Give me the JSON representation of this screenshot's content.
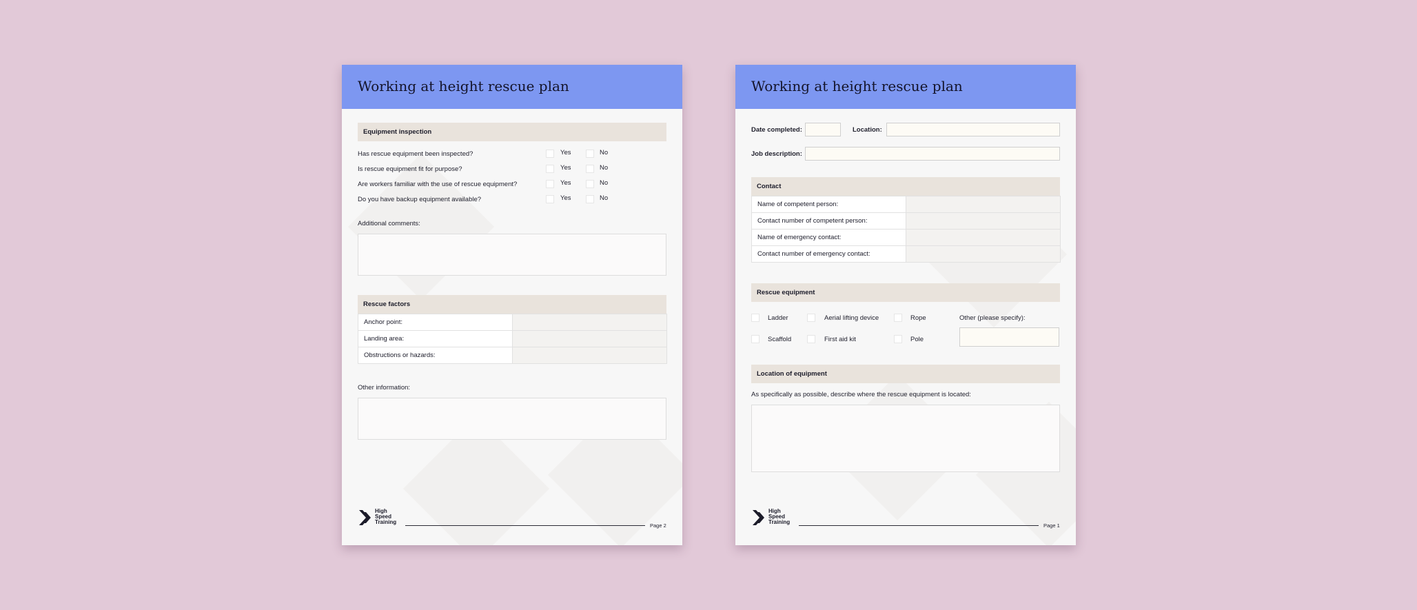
{
  "left_page": {
    "title": "Working at height rescue plan",
    "equipment_inspection": {
      "heading": "Equipment inspection",
      "yes_label": "Yes",
      "no_label": "No",
      "questions": [
        "Has rescue equipment been inspected?",
        "Is rescue equipment fit for purpose?",
        "Are workers familiar with the use of rescue equipment?",
        "Do you have backup equipment available?"
      ]
    },
    "additional_comments_label": "Additional comments:",
    "rescue_factors": {
      "heading": "Rescue factors",
      "rows": [
        "Anchor point:",
        "Landing area:",
        "Obstructions or hazards:"
      ]
    },
    "other_information_label": "Other information:",
    "footer": {
      "logo_line1": "High",
      "logo_line2": "Speed",
      "logo_line3": "Training",
      "page_label": "Page 2"
    }
  },
  "right_page": {
    "title": "Working at height rescue plan",
    "date_completed_label": "Date completed:",
    "location_label": "Location:",
    "job_description_label": "Job description:",
    "contact": {
      "heading": "Contact",
      "rows": [
        "Name of competent person:",
        "Contact number of competent person:",
        "Name of emergency contact:",
        "Contact number of emergency contact:"
      ]
    },
    "rescue_equipment": {
      "heading": "Rescue equipment",
      "options": [
        "Ladder",
        "Aerial lifting device",
        "Rope",
        "Scaffold",
        "First aid kit",
        "Pole"
      ],
      "other_label": "Other (please specify):"
    },
    "location_of_equipment": {
      "heading": "Location of equipment",
      "prompt": "As specifically as possible, describe where the rescue equipment is located:"
    },
    "footer": {
      "logo_line1": "High",
      "logo_line2": "Speed",
      "logo_line3": "Training",
      "page_label": "Page 1"
    }
  },
  "colors": {
    "background": "#e2c9d8",
    "header": "#7d97f1",
    "section_band": "#e9e3dc",
    "paper": "#f7f7f7"
  }
}
